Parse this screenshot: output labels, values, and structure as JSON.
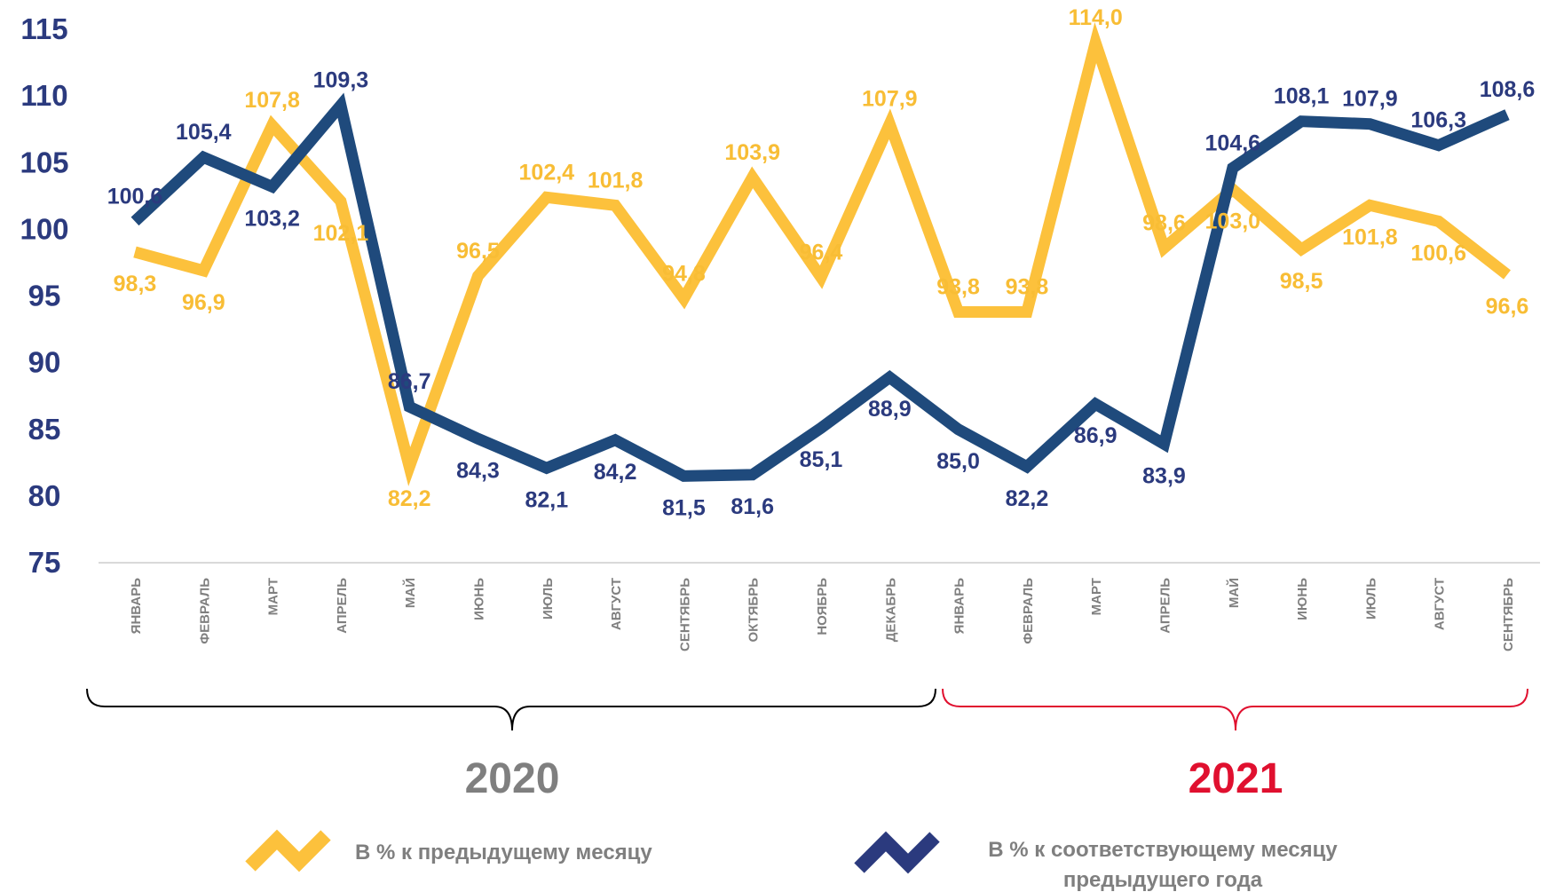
{
  "chart_data": {
    "type": "line",
    "categories": [
      "ЯНВАРЬ",
      "ФЕВРАЛЬ",
      "МАРТ",
      "АПРЕЛЬ",
      "МАЙ",
      "ИЮНЬ",
      "ИЮЛЬ",
      "АВГУСТ",
      "СЕНТЯБРЬ",
      "ОКТЯБРЬ",
      "НОЯБРЬ",
      "ДЕКАБРЬ",
      "ЯНВАРЬ",
      "ФЕВРАЛЬ",
      "МАРТ",
      "АПРЕЛЬ",
      "МАЙ",
      "ИЮНЬ",
      "ИЮЛЬ",
      "АВГУСТ",
      "СЕНТЯБРЬ"
    ],
    "series": [
      {
        "name": "В % к предыдущему месяцу",
        "color": "#fcc13c",
        "values": [
          98.3,
          96.9,
          107.8,
          102.1,
          82.2,
          96.5,
          102.4,
          101.8,
          94.8,
          103.9,
          96.4,
          107.9,
          93.8,
          93.8,
          114.0,
          98.6,
          103.0,
          98.5,
          101.8,
          100.6,
          96.6
        ],
        "value_labels": [
          "98,3",
          "96,9",
          "107,8",
          "102,1",
          "82,2",
          "96,5",
          "102,4",
          "101,8",
          "94,8",
          "103,9",
          "96,4",
          "107,9",
          "93,8",
          "93,8",
          "114,0",
          "98,6",
          "103,0",
          "98,5",
          "101,8",
          "100,6",
          "96,6"
        ]
      },
      {
        "name": "В % к соответствующему месяцу предыдущего года",
        "color": "#1f4a7c",
        "values": [
          100.6,
          105.4,
          103.2,
          109.3,
          86.7,
          84.3,
          82.1,
          84.2,
          81.5,
          81.6,
          85.1,
          88.9,
          85.0,
          82.2,
          86.9,
          83.9,
          104.6,
          108.1,
          107.9,
          106.3,
          108.6
        ],
        "value_labels": [
          "100,6",
          "105,4",
          "103,2",
          "109,3",
          "86,7",
          "84,3",
          "82,1",
          "84,2",
          "81,5",
          "81,6",
          "85,1",
          "88,9",
          "85,0",
          "82,2",
          "86,9",
          "83,9",
          "104,6",
          "108,1",
          "107,9",
          "106,3",
          "108,6"
        ]
      }
    ],
    "ylim": [
      75,
      115
    ],
    "yticks": [
      75,
      80,
      85,
      90,
      95,
      100,
      105,
      110,
      115
    ],
    "groups": [
      {
        "label": "2020",
        "color": "#7f7f7f"
      },
      {
        "label": "2021",
        "color": "#e0102f"
      }
    ]
  }
}
